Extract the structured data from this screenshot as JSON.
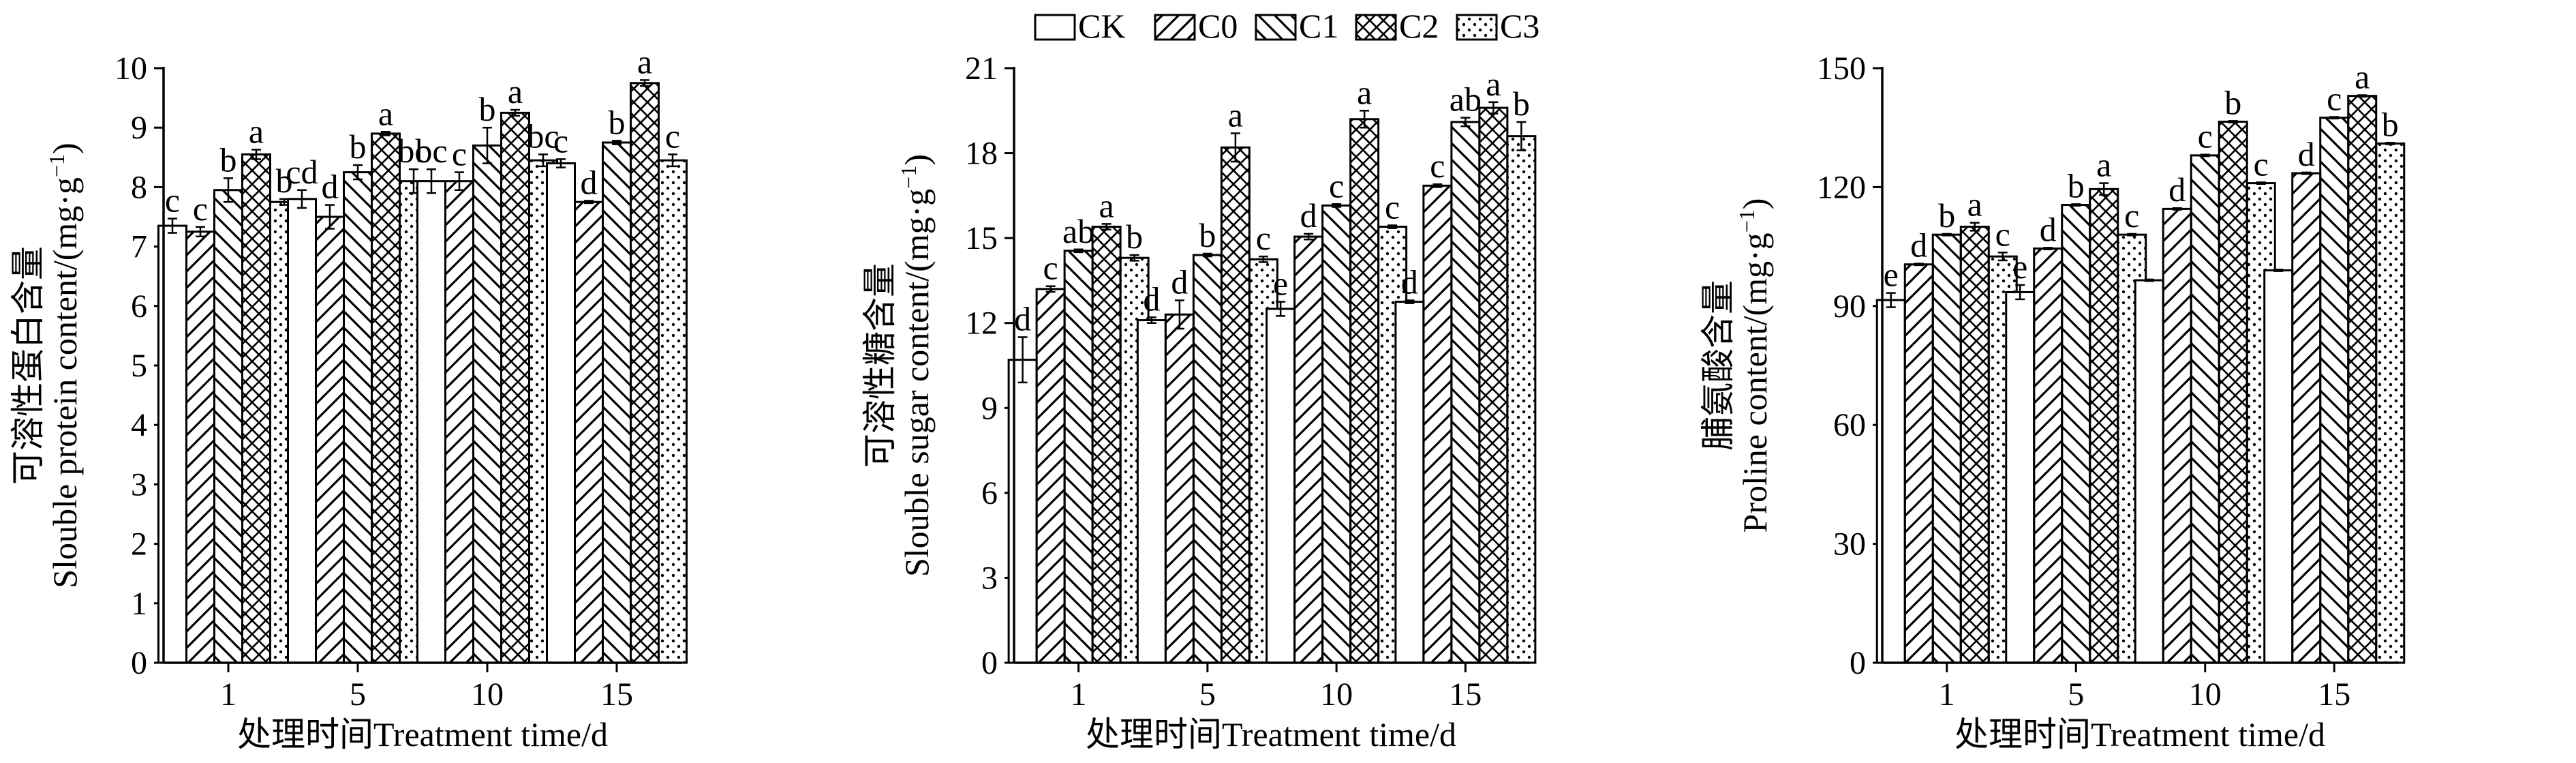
{
  "legend": {
    "placement": "top-center",
    "entries": [
      {
        "label": "CK",
        "pattern": "blank"
      },
      {
        "label": "C0",
        "pattern": "forward-diagonal"
      },
      {
        "label": "C1",
        "pattern": "back-diagonal"
      },
      {
        "label": "C2",
        "pattern": "crosshatch"
      },
      {
        "label": "C3",
        "pattern": "dots"
      }
    ]
  },
  "colors": {
    "ink": "#000000",
    "background": "#ffffff"
  },
  "chart_data": [
    {
      "type": "bar",
      "grouped": true,
      "error_bars": true,
      "categories": [
        "1",
        "5",
        "10",
        "15"
      ],
      "xlabel": "处理时间Treatment time/d",
      "ylabel_line1": "可溶性蛋白含量",
      "ylabel_line2": "Slouble protein content/(mg·g",
      "ylabel_sup": "−1",
      "ylabel_end": ")",
      "ylim": [
        0,
        10
      ],
      "yticks": [
        0,
        1,
        2,
        3,
        4,
        5,
        6,
        7,
        8,
        9,
        10
      ],
      "ytick_labels": [
        "0",
        "1",
        "2",
        "3",
        "4",
        "5",
        "6",
        "7",
        "8",
        "9",
        "10"
      ],
      "grid": false,
      "series": [
        {
          "name": "CK",
          "values": [
            7.35,
            7.8,
            8.1,
            8.4
          ],
          "errors": [
            0.12,
            0.15,
            0.2,
            0.07
          ],
          "letters": [
            "c",
            "cd",
            "bc",
            "c"
          ]
        },
        {
          "name": "C0",
          "values": [
            7.25,
            7.5,
            8.1,
            7.75
          ],
          "errors": [
            0.08,
            0.2,
            0.15,
            0.02
          ],
          "letters": [
            "c",
            "d",
            "c",
            "d"
          ]
        },
        {
          "name": "C1",
          "values": [
            7.95,
            8.25,
            8.7,
            8.75
          ],
          "errors": [
            0.2,
            0.12,
            0.3,
            0.03
          ],
          "letters": [
            "b",
            "b",
            "b",
            "b"
          ]
        },
        {
          "name": "C2",
          "values": [
            8.55,
            8.9,
            9.25,
            9.75
          ],
          "errors": [
            0.08,
            0.03,
            0.05,
            0.05
          ],
          "letters": [
            "a",
            "a",
            "a",
            "a"
          ]
        },
        {
          "name": "C3",
          "values": [
            7.75,
            8.1,
            8.45,
            8.45
          ],
          "errors": [
            0.05,
            0.2,
            0.1,
            0.1
          ],
          "letters": [
            "b",
            "bc",
            "bc",
            "c"
          ]
        }
      ]
    },
    {
      "type": "bar",
      "grouped": true,
      "error_bars": true,
      "categories": [
        "1",
        "5",
        "10",
        "15"
      ],
      "xlabel": "处理时间Treatment time/d",
      "ylabel_line1": "可溶性糖含量",
      "ylabel_line2": "Slouble sugar content/(mg·g",
      "ylabel_sup": "−1",
      "ylabel_end": ")",
      "ylim": [
        0,
        21
      ],
      "yticks": [
        0,
        3,
        6,
        9,
        12,
        15,
        18,
        21
      ],
      "ytick_labels": [
        "0",
        "3",
        "6",
        "9",
        "12",
        "15",
        "18",
        "21"
      ],
      "grid": false,
      "series": [
        {
          "name": "CK",
          "values": [
            10.7,
            12.1,
            12.5,
            12.75
          ],
          "errors": [
            0.8,
            0.1,
            0.25,
            0.05
          ],
          "letters": [
            "d",
            "d",
            "e",
            "d"
          ]
        },
        {
          "name": "C0",
          "values": [
            13.2,
            12.3,
            15.05,
            16.85
          ],
          "errors": [
            0.1,
            0.5,
            0.1,
            0.05
          ],
          "letters": [
            "c",
            "d",
            "d",
            "c"
          ]
        },
        {
          "name": "C1",
          "values": [
            14.55,
            14.4,
            16.15,
            19.1
          ],
          "errors": [
            0.05,
            0.05,
            0.05,
            0.15
          ],
          "letters": [
            "ab",
            "b",
            "c",
            "ab"
          ]
        },
        {
          "name": "C2",
          "values": [
            15.4,
            18.2,
            19.2,
            19.6
          ],
          "errors": [
            0.1,
            0.5,
            0.3,
            0.2
          ],
          "letters": [
            "a",
            "a",
            "a",
            "a"
          ]
        },
        {
          "name": "C3",
          "values": [
            14.3,
            14.25,
            15.4,
            18.6
          ],
          "errors": [
            0.1,
            0.1,
            0.05,
            0.5
          ],
          "letters": [
            "b",
            "c",
            "c",
            "b"
          ]
        }
      ]
    },
    {
      "type": "bar",
      "grouped": true,
      "error_bars": true,
      "categories": [
        "1",
        "5",
        "10",
        "15"
      ],
      "xlabel": "处理时间Treatment time/d",
      "ylabel_line1": "脯氨酸含量",
      "ylabel_line2": "Proline content/(mg·g",
      "ylabel_sup": "−1",
      "ylabel_end": ")",
      "ylim": [
        0,
        150
      ],
      "yticks": [
        0,
        30,
        60,
        90,
        120,
        150
      ],
      "ytick_labels": [
        "0",
        "30",
        "60",
        "90",
        "120",
        "150"
      ],
      "grid": false,
      "series": [
        {
          "name": "CK",
          "values": [
            91.5,
            93.5,
            96.5,
            99.0
          ],
          "errors": [
            1.8,
            1.8,
            0.2,
            0.2
          ],
          "letters": [
            "e",
            "e",
            "",
            ""
          ]
        },
        {
          "name": "C0",
          "values": [
            100.5,
            104.5,
            114.5,
            123.5
          ],
          "errors": [
            0.2,
            0.2,
            0.2,
            0.2
          ],
          "letters": [
            "d",
            "d",
            "d",
            "d"
          ]
        },
        {
          "name": "C1",
          "values": [
            108.0,
            115.5,
            128.0,
            137.5
          ],
          "errors": [
            0.2,
            0.2,
            0.2,
            0.2
          ],
          "letters": [
            "b",
            "b",
            "c",
            "c"
          ]
        },
        {
          "name": "C2",
          "values": [
            110.0,
            119.5,
            136.5,
            143.0
          ],
          "errors": [
            1.0,
            1.5,
            0.2,
            0.2
          ],
          "letters": [
            "a",
            "a",
            "b",
            "a"
          ]
        },
        {
          "name": "C3",
          "values": [
            102.5,
            108.0,
            121.0,
            131.0
          ],
          "errors": [
            1.0,
            0.2,
            0.2,
            0.2
          ],
          "letters": [
            "c",
            "c",
            "c",
            "b"
          ]
        }
      ]
    }
  ]
}
